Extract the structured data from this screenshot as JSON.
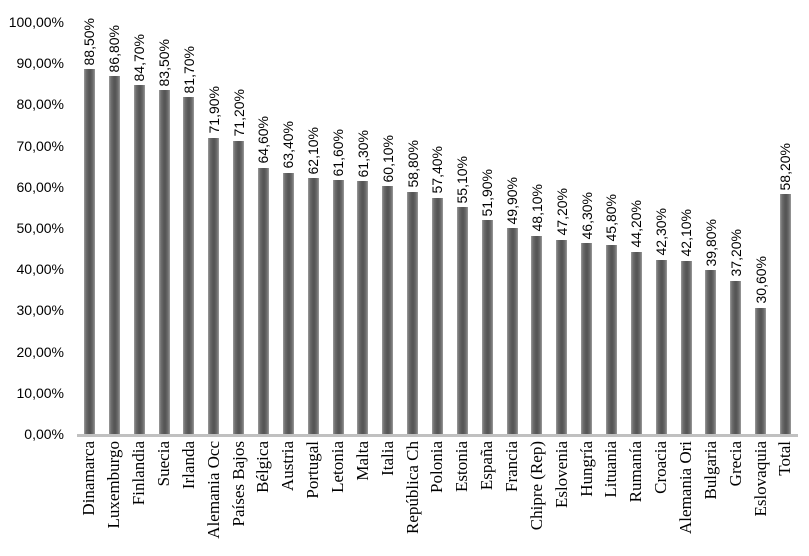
{
  "chart_data": {
    "type": "bar",
    "title": "",
    "xlabel": "",
    "ylabel": "",
    "ylim": [
      0,
      100
    ],
    "grid": false,
    "legend": false,
    "categories": [
      "Dinamarca",
      "Luxemburgo",
      "Finlandia",
      "Suecia",
      "Irlanda",
      "Alemania Occ",
      "Países Bajos",
      "Bélgica",
      "Austria",
      "Portugal",
      "Letonia",
      "Malta",
      "Italia",
      "República Ch",
      "Polonia",
      "Estonia",
      "España",
      "Francia",
      "Chipre (Rep)",
      "Eslovenia",
      "Hungría",
      "Lituania",
      "Rumanía",
      "Croacia",
      "Alemania Ori",
      "Bulgaria",
      "Grecia",
      "Eslovaquia",
      "Total"
    ],
    "values": [
      88.5,
      86.8,
      84.7,
      83.5,
      81.7,
      71.9,
      71.2,
      64.6,
      63.4,
      62.1,
      61.6,
      61.3,
      60.1,
      58.8,
      57.4,
      55.1,
      51.9,
      49.9,
      48.1,
      47.2,
      46.3,
      45.8,
      44.2,
      42.3,
      42.1,
      39.8,
      37.2,
      30.6,
      58.2
    ],
    "value_labels": [
      "88,50%",
      "86,80%",
      "84,70%",
      "83,50%",
      "81,70%",
      "71,90%",
      "71,20%",
      "64,60%",
      "63,40%",
      "62,10%",
      "61,60%",
      "61,30%",
      "60,10%",
      "58,80%",
      "57,40%",
      "55,10%",
      "51,90%",
      "49,90%",
      "48,10%",
      "47,20%",
      "46,30%",
      "45,80%",
      "44,20%",
      "42,30%",
      "42,10%",
      "39,80%",
      "37,20%",
      "30,60%",
      "58,20%"
    ],
    "y_ticks": [
      {
        "value": 0,
        "label": "0,00%"
      },
      {
        "value": 10,
        "label": "10,00%"
      },
      {
        "value": 20,
        "label": "20,00%"
      },
      {
        "value": 30,
        "label": "30,00%"
      },
      {
        "value": 40,
        "label": "40,00%"
      },
      {
        "value": 50,
        "label": "50,00%"
      },
      {
        "value": 60,
        "label": "60,00%"
      },
      {
        "value": 70,
        "label": "70,00%"
      },
      {
        "value": 80,
        "label": "80,00%"
      },
      {
        "value": 90,
        "label": "90,00%"
      },
      {
        "value": 100,
        "label": "100,00%"
      }
    ],
    "colors": {
      "bar": "#565656",
      "bar_light": "#6e6e6e",
      "bar_edge": "#9b9b9b",
      "axis_line": "#c0c0c0",
      "text": "#000000"
    }
  }
}
